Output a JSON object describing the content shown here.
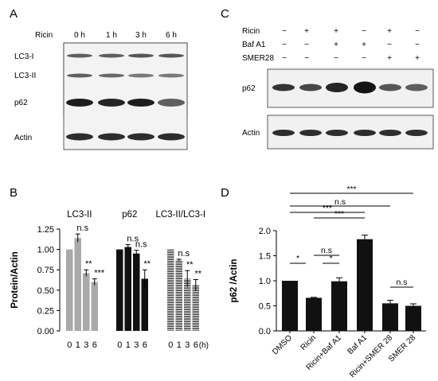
{
  "panels": {
    "A": {
      "letter": "A",
      "ricin_label": "Ricin",
      "timepoints": [
        "0 h",
        "1 h",
        "3 h",
        "6 h"
      ],
      "rows": [
        "LC3-I",
        "LC3-II",
        "p62",
        "Actin"
      ]
    },
    "C": {
      "letter": "C",
      "treatments": [
        {
          "label": "Ricin",
          "signs": [
            "−",
            "+",
            "+",
            "−",
            "+",
            "−"
          ]
        },
        {
          "label": "Baf A1",
          "signs": [
            "−",
            "−",
            "+",
            "+",
            "−",
            "−"
          ]
        },
        {
          "label": "SMER28",
          "signs": [
            "−",
            "−",
            "−",
            "−",
            "+",
            "+"
          ]
        }
      ],
      "rows": [
        "p62",
        "Actin"
      ]
    },
    "B": {
      "letter": "B",
      "x_unit": "(h)"
    },
    "D": {
      "letter": "D"
    }
  },
  "chart_data": [
    {
      "type": "bar",
      "panel": "B",
      "ylabel": "Protein/Actin",
      "ylim": [
        0,
        1.25
      ],
      "yticks": [
        "0.00",
        "0.25",
        "0.50",
        "0.75",
        "1.00",
        "1.25"
      ],
      "grid": false,
      "groups": [
        {
          "title": "LC3-II",
          "categories": [
            "0",
            "1",
            "3",
            "6"
          ],
          "values": [
            1.0,
            1.14,
            0.71,
            0.6
          ],
          "errors": [
            0.0,
            0.05,
            0.04,
            0.04
          ],
          "color": "#a9a9a9",
          "annotations": [
            "",
            "n.s",
            "**",
            "***"
          ]
        },
        {
          "title": "p62",
          "categories": [
            "0",
            "1",
            "3",
            "6"
          ],
          "values": [
            1.0,
            1.03,
            0.95,
            0.64
          ],
          "errors": [
            0.0,
            0.03,
            0.04,
            0.11
          ],
          "color": "#111111",
          "annotations": [
            "",
            "n.s",
            "n.s",
            "**"
          ]
        },
        {
          "title": "LC3-II/LC3-I",
          "categories": [
            "0",
            "1",
            "3",
            "6"
          ],
          "values": [
            1.0,
            0.87,
            0.64,
            0.56
          ],
          "errors": [
            0.0,
            0.01,
            0.1,
            0.07
          ],
          "color": "#8c8c8c",
          "annotations": [
            "",
            "n.s",
            "**",
            "**"
          ]
        }
      ]
    },
    {
      "type": "bar",
      "panel": "D",
      "ylabel": "p62 /Actin",
      "ylim": [
        0,
        2.0
      ],
      "yticks": [
        "0.0",
        "0.5",
        "1.0",
        "1.5",
        "2.0"
      ],
      "grid": false,
      "categories": [
        "DMSO",
        "Ricin",
        "Ricin+Baf A1",
        "Baf A1",
        "Ricin+SMER 28",
        "SMER 28"
      ],
      "values": [
        1.0,
        0.66,
        0.99,
        1.83,
        0.55,
        0.5
      ],
      "errors": [
        0.0,
        0.01,
        0.07,
        0.08,
        0.06,
        0.04
      ],
      "color": "#111111",
      "significance": [
        {
          "from": 0,
          "to": 5,
          "label": "***"
        },
        {
          "from": 0,
          "to": 4,
          "label": "n.s"
        },
        {
          "from": 0,
          "to": 3,
          "label": "***"
        },
        {
          "from": 1,
          "to": 3,
          "label": "***"
        },
        {
          "from": 1,
          "to": 2,
          "label": "n.s"
        },
        {
          "from": 0,
          "to": 1,
          "label": "*"
        },
        {
          "from": 1,
          "to": 2,
          "label": "*"
        },
        {
          "from": 4,
          "to": 5,
          "label": "n.s"
        }
      ]
    }
  ]
}
